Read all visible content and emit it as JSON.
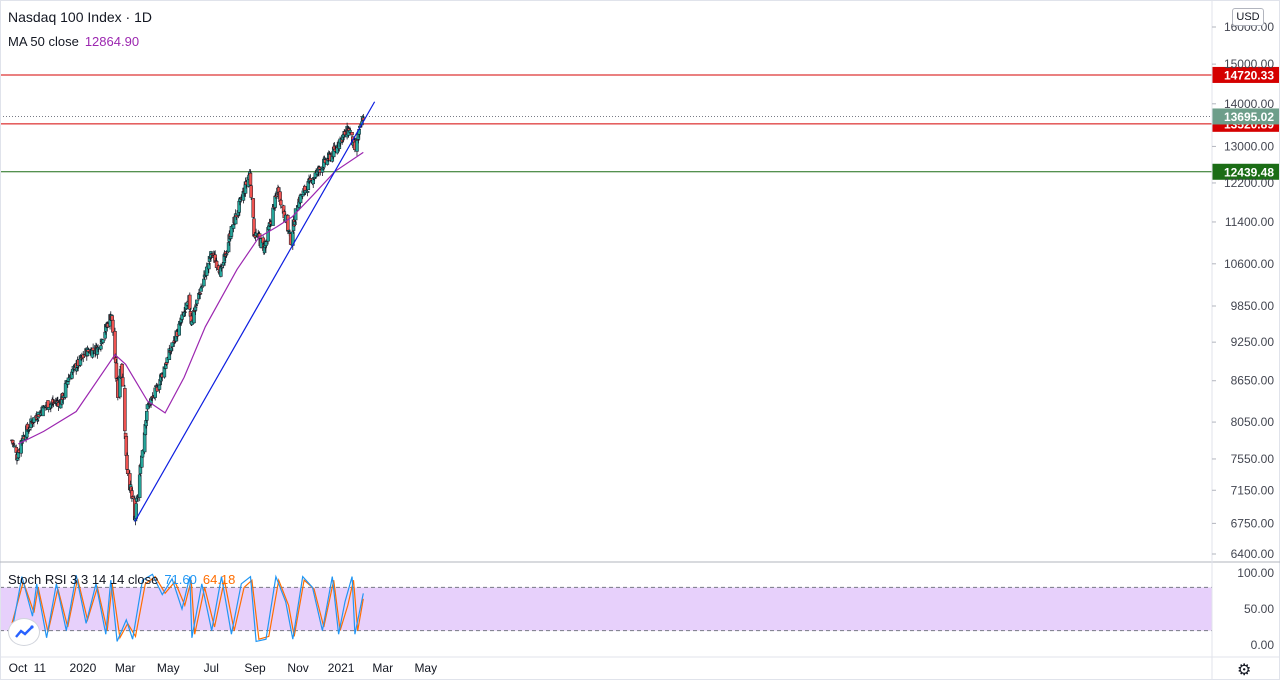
{
  "header": {
    "symbol_title": "Nasdaq 100 Index · 1D",
    "ma_label": "MA 50 close",
    "ma_value": "12864.90",
    "currency": "USD"
  },
  "colors": {
    "up": "#26a69a",
    "down": "#ef5350",
    "ma": "#9c27b0",
    "trendline": "#0d1ee0",
    "resistance": "#d50000",
    "support": "#1b6d16",
    "stoch_k": "#2196f3",
    "stoch_d": "#ff6d00",
    "stoch_band": "#e1c4fa",
    "last_price_label": "#6d9e8a"
  },
  "chart_data": [
    {
      "type": "candlestick",
      "title": "Nasdaq 100 Index · 1D",
      "y_ticks": [
        "6400.00",
        "6750.00",
        "7150.00",
        "7550.00",
        "8050.00",
        "8650.00",
        "9250.00",
        "9850.00",
        "10600.00",
        "11400.00",
        "12200.00",
        "13000.00",
        "14000.00",
        "15000.00",
        "16000.00"
      ],
      "y_scale": "log",
      "ylim": [
        6250,
        16700
      ],
      "x_ticks": [
        "Oct",
        "11",
        "2020",
        "Mar",
        "May",
        "Jul",
        "Sep",
        "Nov",
        "2021",
        "Mar",
        "May"
      ],
      "price_path": [
        {
          "date": "2019-10-01",
          "close": 7800
        },
        {
          "date": "2019-10-08",
          "close": 7580
        },
        {
          "date": "2019-10-15",
          "close": 7820
        },
        {
          "date": "2019-11-01",
          "close": 8100
        },
        {
          "date": "2019-11-20",
          "close": 8300
        },
        {
          "date": "2019-12-10",
          "close": 8350
        },
        {
          "date": "2019-12-20",
          "close": 8700
        },
        {
          "date": "2020-01-15",
          "close": 9100
        },
        {
          "date": "2020-01-31",
          "close": 9150
        },
        {
          "date": "2020-02-19",
          "close": 9718
        },
        {
          "date": "2020-02-28",
          "close": 8450
        },
        {
          "date": "2020-03-04",
          "close": 8950
        },
        {
          "date": "2020-03-12",
          "close": 7450
        },
        {
          "date": "2020-03-20",
          "close": 6994
        },
        {
          "date": "2020-03-23",
          "close": 6771
        },
        {
          "date": "2020-04-09",
          "close": 8230
        },
        {
          "date": "2020-04-21",
          "close": 8470
        },
        {
          "date": "2020-05-12",
          "close": 9100
        },
        {
          "date": "2020-06-08",
          "close": 9950
        },
        {
          "date": "2020-06-11",
          "close": 9600
        },
        {
          "date": "2020-07-10",
          "close": 10800
        },
        {
          "date": "2020-07-24",
          "close": 10450
        },
        {
          "date": "2020-08-05",
          "close": 11150
        },
        {
          "date": "2020-09-02",
          "close": 12420
        },
        {
          "date": "2020-09-08",
          "close": 11200
        },
        {
          "date": "2020-09-23",
          "close": 10900
        },
        {
          "date": "2020-10-12",
          "close": 12080
        },
        {
          "date": "2020-10-30",
          "close": 11050
        },
        {
          "date": "2020-11-09",
          "close": 11800
        },
        {
          "date": "2020-11-30",
          "close": 12300
        },
        {
          "date": "2020-12-15",
          "close": 12600
        },
        {
          "date": "2020-12-31",
          "close": 12890
        },
        {
          "date": "2021-01-08",
          "close": 13150
        },
        {
          "date": "2021-01-21",
          "close": 13400
        },
        {
          "date": "2021-01-29",
          "close": 12925
        },
        {
          "date": "2021-02-10",
          "close": 13695
        }
      ],
      "ma50_path": [
        {
          "date": "2019-10-10",
          "value": 7750
        },
        {
          "date": "2019-11-15",
          "value": 7920
        },
        {
          "date": "2019-12-31",
          "value": 8200
        },
        {
          "date": "2020-02-24",
          "value": 9050
        },
        {
          "date": "2020-03-10",
          "value": 8900
        },
        {
          "date": "2020-04-10",
          "value": 8350
        },
        {
          "date": "2020-05-05",
          "value": 8180
        },
        {
          "date": "2020-06-01",
          "value": 8700
        },
        {
          "date": "2020-07-01",
          "value": 9500
        },
        {
          "date": "2020-08-15",
          "value": 10500
        },
        {
          "date": "2020-09-15",
          "value": 11100
        },
        {
          "date": "2020-10-10",
          "value": 11300
        },
        {
          "date": "2020-11-01",
          "value": 11500
        },
        {
          "date": "2020-12-01",
          "value": 11950
        },
        {
          "date": "2021-01-01",
          "value": 12450
        },
        {
          "date": "2021-02-10",
          "value": 12864.9
        }
      ],
      "trendline": {
        "start": {
          "date": "2020-03-23",
          "value": 6771
        },
        "end": {
          "date": "2021-02-26",
          "value": 14050
        }
      },
      "horizontal_levels": [
        {
          "value": 14720.33,
          "label": "14720.33",
          "color": "#d50000"
        },
        {
          "value": 13520.89,
          "label": "13520.89",
          "color": "#d50000"
        },
        {
          "value": 12439.48,
          "label": "12439.48",
          "color": "#1b6d16"
        }
      ],
      "last_price": {
        "value": 13695.02,
        "label": "13695.02"
      }
    },
    {
      "type": "line",
      "title": "Stoch RSI 3 3 14 14 close",
      "k_value": "71.60",
      "d_value": "64.18",
      "y_ticks": [
        "0.00",
        "50.00",
        "100.00"
      ],
      "ylim": [
        0,
        100
      ],
      "band": [
        20,
        80
      ],
      "k_path": [
        {
          "date": "2019-10-01",
          "value": 20
        },
        {
          "date": "2019-10-15",
          "value": 95
        },
        {
          "date": "2019-10-30",
          "value": 40
        },
        {
          "date": "2019-11-05",
          "value": 85
        },
        {
          "date": "2019-11-19",
          "value": 10
        },
        {
          "date": "2019-12-03",
          "value": 85
        },
        {
          "date": "2019-12-17",
          "value": 20
        },
        {
          "date": "2019-12-31",
          "value": 97
        },
        {
          "date": "2020-01-14",
          "value": 30
        },
        {
          "date": "2020-01-28",
          "value": 85
        },
        {
          "date": "2020-02-11",
          "value": 15
        },
        {
          "date": "2020-02-18",
          "value": 90
        },
        {
          "date": "2020-02-27",
          "value": 5
        },
        {
          "date": "2020-03-11",
          "value": 35
        },
        {
          "date": "2020-03-20",
          "value": 8
        },
        {
          "date": "2020-04-03",
          "value": 90
        },
        {
          "date": "2020-04-17",
          "value": 98
        },
        {
          "date": "2020-05-01",
          "value": 70
        },
        {
          "date": "2020-05-15",
          "value": 92
        },
        {
          "date": "2020-05-29",
          "value": 50
        },
        {
          "date": "2020-06-09",
          "value": 95
        },
        {
          "date": "2020-06-12",
          "value": 10
        },
        {
          "date": "2020-06-26",
          "value": 85
        },
        {
          "date": "2020-07-10",
          "value": 20
        },
        {
          "date": "2020-07-24",
          "value": 95
        },
        {
          "date": "2020-08-07",
          "value": 15
        },
        {
          "date": "2020-08-21",
          "value": 85
        },
        {
          "date": "2020-09-03",
          "value": 95
        },
        {
          "date": "2020-09-11",
          "value": 5
        },
        {
          "date": "2020-09-25",
          "value": 8
        },
        {
          "date": "2020-10-09",
          "value": 95
        },
        {
          "date": "2020-10-23",
          "value": 60
        },
        {
          "date": "2020-11-02",
          "value": 8
        },
        {
          "date": "2020-11-16",
          "value": 95
        },
        {
          "date": "2020-11-30",
          "value": 80
        },
        {
          "date": "2020-12-14",
          "value": 20
        },
        {
          "date": "2020-12-28",
          "value": 95
        },
        {
          "date": "2021-01-06",
          "value": 15
        },
        {
          "date": "2021-01-15",
          "value": 60
        },
        {
          "date": "2021-01-25",
          "value": 95
        },
        {
          "date": "2021-01-29",
          "value": 15
        },
        {
          "date": "2021-02-10",
          "value": 71.6
        }
      ],
      "d_path": [
        {
          "date": "2019-10-01",
          "value": 30
        },
        {
          "date": "2019-10-17",
          "value": 88
        },
        {
          "date": "2019-11-01",
          "value": 45
        },
        {
          "date": "2019-11-07",
          "value": 80
        },
        {
          "date": "2019-11-21",
          "value": 18
        },
        {
          "date": "2019-12-05",
          "value": 78
        },
        {
          "date": "2019-12-19",
          "value": 25
        },
        {
          "date": "2020-01-02",
          "value": 92
        },
        {
          "date": "2020-01-16",
          "value": 35
        },
        {
          "date": "2020-01-30",
          "value": 80
        },
        {
          "date": "2020-02-13",
          "value": 20
        },
        {
          "date": "2020-02-20",
          "value": 85
        },
        {
          "date": "2020-03-02",
          "value": 10
        },
        {
          "date": "2020-03-13",
          "value": 30
        },
        {
          "date": "2020-03-24",
          "value": 12
        },
        {
          "date": "2020-04-07",
          "value": 85
        },
        {
          "date": "2020-04-21",
          "value": 95
        },
        {
          "date": "2020-05-05",
          "value": 72
        },
        {
          "date": "2020-05-19",
          "value": 88
        },
        {
          "date": "2020-06-02",
          "value": 55
        },
        {
          "date": "2020-06-11",
          "value": 90
        },
        {
          "date": "2020-06-16",
          "value": 15
        },
        {
          "date": "2020-06-30",
          "value": 80
        },
        {
          "date": "2020-07-14",
          "value": 25
        },
        {
          "date": "2020-07-28",
          "value": 90
        },
        {
          "date": "2020-08-11",
          "value": 20
        },
        {
          "date": "2020-08-25",
          "value": 80
        },
        {
          "date": "2020-09-05",
          "value": 90
        },
        {
          "date": "2020-09-15",
          "value": 8
        },
        {
          "date": "2020-09-29",
          "value": 12
        },
        {
          "date": "2020-10-13",
          "value": 90
        },
        {
          "date": "2020-10-27",
          "value": 55
        },
        {
          "date": "2020-11-04",
          "value": 12
        },
        {
          "date": "2020-11-18",
          "value": 90
        },
        {
          "date": "2020-12-02",
          "value": 78
        },
        {
          "date": "2020-12-16",
          "value": 25
        },
        {
          "date": "2020-12-30",
          "value": 90
        },
        {
          "date": "2021-01-08",
          "value": 20
        },
        {
          "date": "2021-01-19",
          "value": 55
        },
        {
          "date": "2021-01-27",
          "value": 90
        },
        {
          "date": "2021-02-02",
          "value": 20
        },
        {
          "date": "2021-02-10",
          "value": 64.18
        }
      ]
    }
  ]
}
